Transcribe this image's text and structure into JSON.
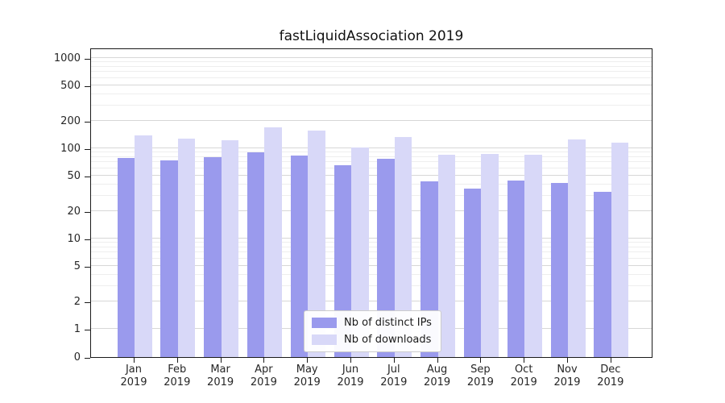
{
  "chart_data": {
    "type": "bar",
    "title": "fastLiquidAssociation 2019",
    "categories": [
      "Jan",
      "Feb",
      "Mar",
      "Apr",
      "May",
      "Jun",
      "Jul",
      "Aug",
      "Sep",
      "Oct",
      "Nov",
      "Dec"
    ],
    "year": "2019",
    "series": [
      {
        "name": "Nb of distinct IPs",
        "color": "#9a9aed",
        "values": [
          78,
          74,
          79,
          90,
          83,
          65,
          77,
          43,
          36,
          44,
          41,
          33
        ]
      },
      {
        "name": "Nb of downloads",
        "color": "#d8d8f8",
        "values": [
          140,
          128,
          122,
          170,
          158,
          103,
          133,
          84,
          87,
          84,
          126,
          115
        ]
      }
    ],
    "yscale": "symlog",
    "yticks": [
      0,
      1,
      2,
      5,
      10,
      20,
      50,
      100,
      200,
      500,
      1000
    ],
    "ylim": [
      0,
      1000
    ],
    "grid": "horizontal",
    "legend_position": "lower center"
  }
}
